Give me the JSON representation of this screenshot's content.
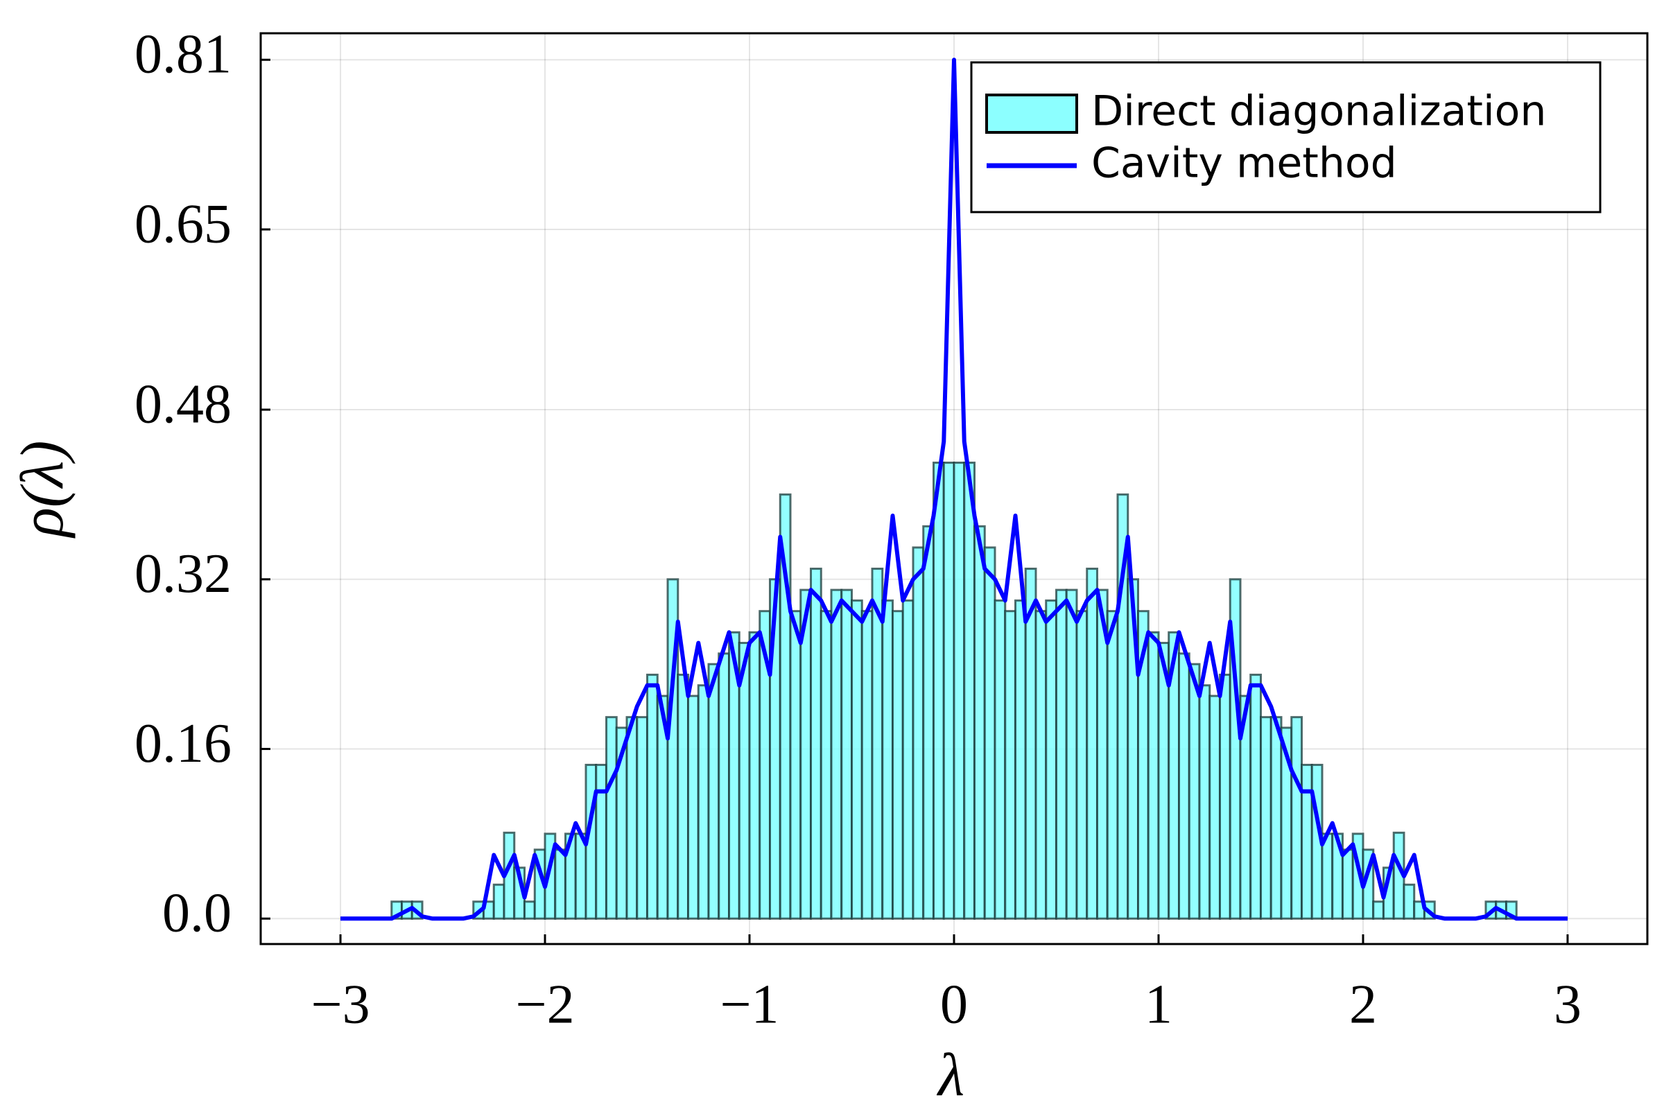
{
  "chart_data": {
    "type": "histogram",
    "xlabel": "λ",
    "ylabel": "ρ(λ)",
    "xlim": [
      -3.39,
      3.39
    ],
    "ylim": [
      -0.024,
      0.835
    ],
    "xticks": [
      {
        "value": -3,
        "label": "−3"
      },
      {
        "value": -2,
        "label": "−2"
      },
      {
        "value": -1,
        "label": "−1"
      },
      0,
      1,
      2,
      3
    ],
    "yticks": [
      {
        "value": 0,
        "label": "0.0"
      },
      0.16,
      0.32,
      0.48,
      0.65,
      0.81
    ],
    "grid": true,
    "legend": "upper right",
    "series": [
      {
        "name": "Direct diagonalization",
        "type": "histogram",
        "color": "#80ffff",
        "bins": [
          -3,
          -2.95,
          -2.9,
          -2.85,
          -2.8,
          -2.75,
          -2.7,
          -2.65,
          -2.6,
          -2.55,
          -2.5,
          -2.45,
          -2.4,
          -2.35,
          -2.3,
          -2.25,
          -2.2,
          -2.15,
          -2.1,
          -2.05,
          -2,
          -1.95,
          -1.9,
          -1.85,
          -1.8,
          -1.75,
          -1.7,
          -1.65,
          -1.6,
          -1.55,
          -1.5,
          -1.45,
          -1.4,
          -1.35,
          -1.3,
          -1.25,
          -1.2,
          -1.15,
          -1.1,
          -1.05,
          -1,
          -0.95,
          -0.9,
          -0.85,
          -0.8,
          -0.75,
          -0.7,
          -0.65,
          -0.6,
          -0.55,
          -0.5,
          -0.45,
          -0.4,
          -0.35,
          -0.3,
          -0.25,
          -0.2,
          -0.15,
          -0.1,
          -0.05,
          0,
          0.05,
          0.1,
          0.15,
          0.2,
          0.25,
          0.3,
          0.35,
          0.4,
          0.45,
          0.5,
          0.55,
          0.6,
          0.65,
          0.7,
          0.75,
          0.8,
          0.85,
          0.9,
          0.95,
          1,
          1.05,
          1.1,
          1.15,
          1.2,
          1.25,
          1.3,
          1.35,
          1.4,
          1.45,
          1.5,
          1.55,
          1.6,
          1.65,
          1.7,
          1.75,
          1.8,
          1.85,
          1.9,
          1.95,
          2,
          2.05,
          2.1,
          2.15,
          2.2,
          2.25,
          2.3,
          2.35,
          2.4,
          2.45,
          2.5,
          2.55,
          2.6,
          2.65,
          2.7,
          2.75,
          2.8,
          2.85,
          2.9,
          2.95,
          3
        ],
        "values": [
          0,
          0,
          0,
          0,
          0,
          0.016,
          0.016,
          0.016,
          0,
          0,
          0,
          0,
          0,
          0.016,
          0.016,
          0.032,
          0.081,
          0.048,
          0.016,
          0.065,
          0.08,
          0.065,
          0.08,
          0.08,
          0.145,
          0.145,
          0.19,
          0.18,
          0.19,
          0.19,
          0.23,
          0.21,
          0.32,
          0.23,
          0.21,
          0.22,
          0.24,
          0.25,
          0.27,
          0.26,
          0.27,
          0.29,
          0.32,
          0.4,
          0.29,
          0.31,
          0.33,
          0.29,
          0.31,
          0.31,
          0.3,
          0.29,
          0.33,
          0.3,
          0.29,
          0.3,
          0.35,
          0.37,
          0.43,
          0.43,
          0.43,
          0.43,
          0.37,
          0.35,
          0.3,
          0.29,
          0.3,
          0.33,
          0.29,
          0.3,
          0.31,
          0.31,
          0.29,
          0.33,
          0.31,
          0.29,
          0.4,
          0.32,
          0.29,
          0.27,
          0.26,
          0.27,
          0.25,
          0.24,
          0.22,
          0.21,
          0.23,
          0.32,
          0.21,
          0.23,
          0.19,
          0.19,
          0.18,
          0.19,
          0.145,
          0.145,
          0.08,
          0.08,
          0.065,
          0.08,
          0.065,
          0.016,
          0.048,
          0.081,
          0.032,
          0.016,
          0.016,
          0,
          0,
          0,
          0,
          0,
          0.016,
          0.016,
          0.016,
          0,
          0,
          0,
          0,
          0
        ]
      },
      {
        "name": "Cavity method",
        "type": "line",
        "color": "#0000ff",
        "x": [
          -3,
          -2.95,
          -2.9,
          -2.85,
          -2.8,
          -2.75,
          -2.7,
          -2.65,
          -2.6,
          -2.55,
          -2.5,
          -2.45,
          -2.4,
          -2.35,
          -2.3,
          -2.25,
          -2.2,
          -2.15,
          -2.1,
          -2.05,
          -2,
          -1.95,
          -1.9,
          -1.85,
          -1.8,
          -1.75,
          -1.7,
          -1.65,
          -1.6,
          -1.55,
          -1.5,
          -1.45,
          -1.4,
          -1.35,
          -1.3,
          -1.25,
          -1.2,
          -1.15,
          -1.1,
          -1.05,
          -1,
          -0.95,
          -0.9,
          -0.85,
          -0.8,
          -0.75,
          -0.7,
          -0.65,
          -0.6,
          -0.55,
          -0.5,
          -0.45,
          -0.4,
          -0.35,
          -0.3,
          -0.25,
          -0.2,
          -0.15,
          -0.1,
          -0.05,
          0,
          0.05,
          0.1,
          0.15,
          0.2,
          0.25,
          0.3,
          0.35,
          0.4,
          0.45,
          0.5,
          0.55,
          0.6,
          0.65,
          0.7,
          0.75,
          0.8,
          0.85,
          0.9,
          0.95,
          1,
          1.05,
          1.1,
          1.15,
          1.2,
          1.25,
          1.3,
          1.35,
          1.4,
          1.45,
          1.5,
          1.55,
          1.6,
          1.65,
          1.7,
          1.75,
          1.8,
          1.85,
          1.9,
          1.95,
          2,
          2.05,
          2.1,
          2.15,
          2.2,
          2.25,
          2.3,
          2.35,
          2.4,
          2.45,
          2.5,
          2.55,
          2.6,
          2.65,
          2.7,
          2.75,
          2.8,
          2.85,
          2.9,
          2.95,
          3
        ],
        "values": [
          0,
          0,
          0,
          0,
          0,
          0,
          0.005,
          0.01,
          0.002,
          0,
          0,
          0,
          0,
          0.002,
          0.01,
          0.06,
          0.04,
          0.06,
          0.02,
          0.06,
          0.03,
          0.07,
          0.06,
          0.09,
          0.07,
          0.12,
          0.12,
          0.14,
          0.17,
          0.2,
          0.22,
          0.22,
          0.17,
          0.28,
          0.21,
          0.26,
          0.21,
          0.24,
          0.27,
          0.22,
          0.26,
          0.27,
          0.23,
          0.36,
          0.29,
          0.26,
          0.31,
          0.3,
          0.28,
          0.3,
          0.29,
          0.28,
          0.3,
          0.28,
          0.38,
          0.3,
          0.32,
          0.33,
          0.38,
          0.45,
          0.81,
          0.45,
          0.38,
          0.33,
          0.32,
          0.3,
          0.38,
          0.28,
          0.3,
          0.28,
          0.29,
          0.3,
          0.28,
          0.3,
          0.31,
          0.26,
          0.29,
          0.36,
          0.23,
          0.27,
          0.26,
          0.22,
          0.27,
          0.24,
          0.21,
          0.26,
          0.21,
          0.28,
          0.17,
          0.22,
          0.22,
          0.2,
          0.17,
          0.14,
          0.12,
          0.12,
          0.07,
          0.09,
          0.06,
          0.07,
          0.03,
          0.06,
          0.02,
          0.06,
          0.04,
          0.06,
          0.01,
          0.002,
          0,
          0,
          0,
          0,
          0.002,
          0.01,
          0.005,
          0,
          0,
          0,
          0,
          0,
          0
        ]
      }
    ]
  }
}
